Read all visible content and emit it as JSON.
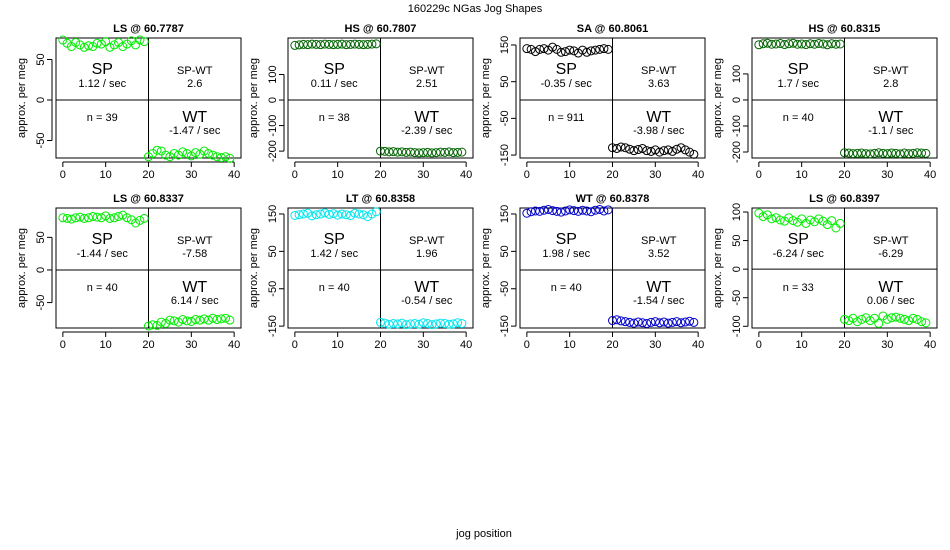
{
  "title": "160229c   NGas Jog Shapes",
  "xlabel": "jog position",
  "chart_data": [
    {
      "type": "scatter",
      "title": "LS @ 60.7787",
      "ylabel": "approx. per meg",
      "color": "#00ee00",
      "xlim": [
        -1.6,
        41.6
      ],
      "ylim": [
        -71.6,
        76.5
      ],
      "xticks": [
        0,
        10,
        20,
        30,
        40
      ],
      "yticks": [
        -50,
        0,
        50
      ],
      "vline": 20,
      "hline": 0,
      "x": [
        0,
        1,
        2,
        3,
        4,
        5,
        6,
        7,
        8,
        9,
        10,
        11,
        12,
        13,
        14,
        15,
        16,
        17,
        18,
        19,
        20,
        21,
        22,
        23,
        24,
        25,
        26,
        27,
        28,
        29,
        30,
        31,
        32,
        33,
        34,
        35,
        36,
        37,
        38,
        39
      ],
      "values": [
        74,
        70,
        66,
        71,
        68,
        65,
        67,
        66,
        70,
        69,
        72,
        65,
        68,
        71,
        66,
        69,
        73,
        68,
        74,
        72,
        -70,
        -66,
        -62,
        -63,
        -68,
        -70,
        -66,
        -68,
        -64,
        -66,
        -69,
        -65,
        -67,
        -63,
        -66,
        -68,
        -70,
        -71,
        -70,
        -72
      ],
      "labels": {
        "sp": "SP",
        "sp_rate": "1.12 / sec",
        "diff_label": "SP-WT",
        "diff": "2.6",
        "n": "n = 39",
        "wt": "WT",
        "wt_rate": "-1.47 / sec"
      }
    },
    {
      "type": "scatter",
      "title": "HS @ 60.7807",
      "ylabel": "approx. per meg",
      "color": "#006400",
      "xlim": [
        -1.6,
        41.6
      ],
      "ylim": [
        -227,
        243
      ],
      "xticks": [
        0,
        10,
        20,
        30,
        40
      ],
      "yticks": [
        -200,
        -100,
        0,
        100
      ],
      "vline": 20,
      "hline": 0,
      "x": [
        0,
        1,
        2,
        3,
        4,
        5,
        6,
        7,
        8,
        9,
        10,
        11,
        12,
        13,
        14,
        15,
        16,
        17,
        18,
        19,
        20,
        21,
        22,
        23,
        24,
        25,
        26,
        27,
        28,
        29,
        30,
        31,
        32,
        33,
        34,
        35,
        36,
        37,
        38,
        39
      ],
      "values": [
        214,
        216,
        218,
        217,
        219,
        218,
        217,
        219,
        218,
        217,
        218,
        219,
        217,
        218,
        219,
        218,
        217,
        218,
        219,
        220,
        -200,
        -201,
        -203,
        -202,
        -204,
        -203,
        -205,
        -204,
        -206,
        -207,
        -206,
        -205,
        -207,
        -206,
        -204,
        -205,
        -203,
        -206,
        -205,
        -204
      ],
      "labels": {
        "sp": "SP",
        "sp_rate": "0.11 / sec",
        "diff_label": "SP-WT",
        "diff": "2.51",
        "n": "n = 38",
        "wt": "WT",
        "wt_rate": "-2.39 / sec"
      }
    },
    {
      "type": "scatter",
      "title": "SA @ 60.8061",
      "ylabel": "approx. per meg",
      "color": "#000000",
      "xlim": [
        -1.6,
        41.6
      ],
      "ylim": [
        -158,
        169
      ],
      "xticks": [
        0,
        10,
        20,
        30,
        40
      ],
      "yticks": [
        -150,
        -50,
        50,
        150
      ],
      "vline": 20,
      "hline": 0,
      "x": [
        0,
        1,
        2,
        3,
        4,
        5,
        6,
        7,
        8,
        9,
        10,
        11,
        12,
        13,
        14,
        15,
        16,
        17,
        18,
        19,
        20,
        21,
        22,
        23,
        24,
        25,
        26,
        27,
        28,
        29,
        30,
        31,
        32,
        33,
        34,
        35,
        36,
        37,
        38,
        39
      ],
      "values": [
        140,
        138,
        132,
        138,
        140,
        136,
        144,
        138,
        130,
        132,
        136,
        134,
        128,
        136,
        130,
        134,
        136,
        138,
        140,
        138,
        -130,
        -132,
        -128,
        -130,
        -134,
        -138,
        -135,
        -132,
        -138,
        -140,
        -136,
        -142,
        -138,
        -136,
        -140,
        -134,
        -130,
        -136,
        -142,
        -148
      ],
      "labels": {
        "sp": "SP",
        "sp_rate": "-0.35 / sec",
        "diff_label": "SP-WT",
        "diff": "3.63",
        "n": "n = 911",
        "wt": "WT",
        "wt_rate": "-3.98 / sec"
      }
    },
    {
      "type": "scatter",
      "title": "HS @ 60.8315",
      "ylabel": "approx. per meg",
      "color": "#006400",
      "xlim": [
        -1.6,
        41.6
      ],
      "ylim": [
        -223,
        238
      ],
      "xticks": [
        0,
        10,
        20,
        30,
        40
      ],
      "yticks": [
        -200,
        -100,
        0,
        100
      ],
      "vline": 20,
      "hline": 0,
      "x": [
        0,
        1,
        2,
        3,
        4,
        5,
        6,
        7,
        8,
        9,
        10,
        11,
        12,
        13,
        14,
        15,
        16,
        17,
        18,
        19,
        20,
        21,
        22,
        23,
        24,
        25,
        26,
        27,
        28,
        29,
        30,
        31,
        32,
        33,
        34,
        35,
        36,
        37,
        38,
        39
      ],
      "values": [
        212,
        216,
        218,
        214,
        215,
        217,
        213,
        216,
        218,
        214,
        215,
        213,
        216,
        214,
        217,
        215,
        212,
        216,
        214,
        215,
        -203,
        -204,
        -206,
        -205,
        -204,
        -206,
        -207,
        -205,
        -203,
        -205,
        -206,
        -204,
        -205,
        -207,
        -204,
        -206,
        -205,
        -203,
        -204,
        -205
      ],
      "labels": {
        "sp": "SP",
        "sp_rate": "1.7 / sec",
        "diff_label": "SP-WT",
        "diff": "2.8",
        "n": "n = 40",
        "wt": "WT",
        "wt_rate": "-1.1 / sec"
      }
    },
    {
      "type": "scatter",
      "title": "LS @ 60.8337",
      "ylabel": "approx. per meg",
      "color": "#00ee00",
      "xlim": [
        -1.6,
        41.6
      ],
      "ylim": [
        -89,
        95
      ],
      "xticks": [
        0,
        10,
        20,
        30,
        40
      ],
      "yticks": [
        -50,
        0,
        50
      ],
      "vline": 20,
      "hline": 0,
      "x": [
        0,
        1,
        2,
        3,
        4,
        5,
        6,
        7,
        8,
        9,
        10,
        11,
        12,
        13,
        14,
        15,
        16,
        17,
        18,
        19,
        20,
        21,
        22,
        23,
        24,
        25,
        26,
        27,
        28,
        29,
        30,
        31,
        32,
        33,
        34,
        35,
        36,
        37,
        38,
        39
      ],
      "values": [
        80,
        79,
        78,
        80,
        81,
        79,
        80,
        82,
        81,
        80,
        83,
        79,
        80,
        82,
        84,
        80,
        77,
        72,
        76,
        79,
        -86,
        -84,
        -85,
        -80,
        -82,
        -77,
        -78,
        -80,
        -76,
        -78,
        -79,
        -76,
        -77,
        -75,
        -77,
        -74,
        -76,
        -75,
        -74,
        -77
      ],
      "labels": {
        "sp": "SP",
        "sp_rate": "-1.44 / sec",
        "diff_label": "SP-WT",
        "diff": "-7.58",
        "n": "n = 40",
        "wt": "WT",
        "wt_rate": "6.14 / sec"
      }
    },
    {
      "type": "scatter",
      "title": "LT @ 60.8358",
      "ylabel": "approx. per meg",
      "color": "#00e5ee",
      "xlim": [
        -1.6,
        41.6
      ],
      "ylim": [
        -155,
        166
      ],
      "xticks": [
        0,
        10,
        20,
        30,
        40
      ],
      "yticks": [
        -150,
        -50,
        50,
        150
      ],
      "vline": 20,
      "hline": 0,
      "x": [
        0,
        1,
        2,
        3,
        4,
        5,
        6,
        7,
        8,
        9,
        10,
        11,
        12,
        13,
        14,
        15,
        16,
        17,
        18,
        19,
        20,
        21,
        22,
        23,
        24,
        25,
        26,
        27,
        28,
        29,
        30,
        31,
        32,
        33,
        34,
        35,
        36,
        37,
        38,
        39
      ],
      "values": [
        146,
        148,
        150,
        152,
        145,
        148,
        150,
        153,
        149,
        151,
        147,
        150,
        148,
        146,
        152,
        150,
        148,
        143,
        150,
        156,
        -140,
        -142,
        -145,
        -143,
        -144,
        -142,
        -146,
        -144,
        -143,
        -145,
        -141,
        -143,
        -146,
        -144,
        -142,
        -143,
        -145,
        -144,
        -141,
        -143
      ],
      "labels": {
        "sp": "SP",
        "sp_rate": "1.42 / sec",
        "diff_label": "SP-WT",
        "diff": "1.96",
        "n": "n = 40",
        "wt": "WT",
        "wt_rate": "-0.54 / sec"
      }
    },
    {
      "type": "scatter",
      "title": "WT @ 60.8378",
      "ylabel": "approx. per meg",
      "color": "#0000cc",
      "xlim": [
        -1.6,
        41.6
      ],
      "ylim": [
        -155,
        166
      ],
      "xticks": [
        0,
        10,
        20,
        30,
        40
      ],
      "yticks": [
        -150,
        -50,
        50,
        150
      ],
      "vline": 20,
      "hline": 0,
      "x": [
        0,
        1,
        2,
        3,
        4,
        5,
        6,
        7,
        8,
        9,
        10,
        11,
        12,
        13,
        14,
        15,
        16,
        17,
        18,
        19,
        20,
        21,
        22,
        23,
        24,
        25,
        26,
        27,
        28,
        29,
        30,
        31,
        32,
        33,
        34,
        35,
        36,
        37,
        38,
        39
      ],
      "values": [
        152,
        156,
        158,
        157,
        160,
        162,
        159,
        157,
        155,
        158,
        161,
        159,
        157,
        160,
        158,
        156,
        160,
        162,
        158,
        161,
        -135,
        -133,
        -136,
        -138,
        -140,
        -142,
        -139,
        -141,
        -143,
        -140,
        -138,
        -141,
        -139,
        -142,
        -140,
        -138,
        -141,
        -139,
        -137,
        -140
      ],
      "labels": {
        "sp": "SP",
        "sp_rate": "1.98 / sec",
        "diff_label": "SP-WT",
        "diff": "3.52",
        "n": "n = 40",
        "wt": "WT",
        "wt_rate": "-1.54 / sec"
      }
    },
    {
      "type": "scatter",
      "title": "LS @ 60.8397",
      "ylabel": "approx. per meg",
      "color": "#00ee00",
      "xlim": [
        -1.6,
        41.6
      ],
      "ylim": [
        -103,
        107
      ],
      "xticks": [
        0,
        10,
        20,
        30,
        40
      ],
      "yticks": [
        -100,
        -50,
        0,
        50,
        100
      ],
      "vline": 20,
      "hline": 0,
      "x": [
        0,
        1,
        2,
        3,
        4,
        5,
        6,
        7,
        8,
        9,
        10,
        11,
        12,
        13,
        14,
        15,
        16,
        17,
        18,
        19,
        20,
        21,
        22,
        23,
        24,
        25,
        26,
        27,
        28,
        29,
        30,
        31,
        32,
        33,
        34,
        35,
        36,
        37,
        38,
        39
      ],
      "values": [
        98,
        92,
        95,
        88,
        90,
        86,
        84,
        90,
        85,
        82,
        88,
        80,
        86,
        83,
        88,
        84,
        78,
        85,
        72,
        80,
        -88,
        -90,
        -86,
        -92,
        -88,
        -85,
        -90,
        -86,
        -95,
        -82,
        -88,
        -85,
        -84,
        -86,
        -88,
        -90,
        -86,
        -88,
        -92,
        -94
      ],
      "labels": {
        "sp": "SP",
        "sp_rate": "-6.24 / sec",
        "diff_label": "SP-WT",
        "diff": "-6.29",
        "n": "n = 33",
        "wt": "WT",
        "wt_rate": "0.06 / sec"
      }
    }
  ]
}
